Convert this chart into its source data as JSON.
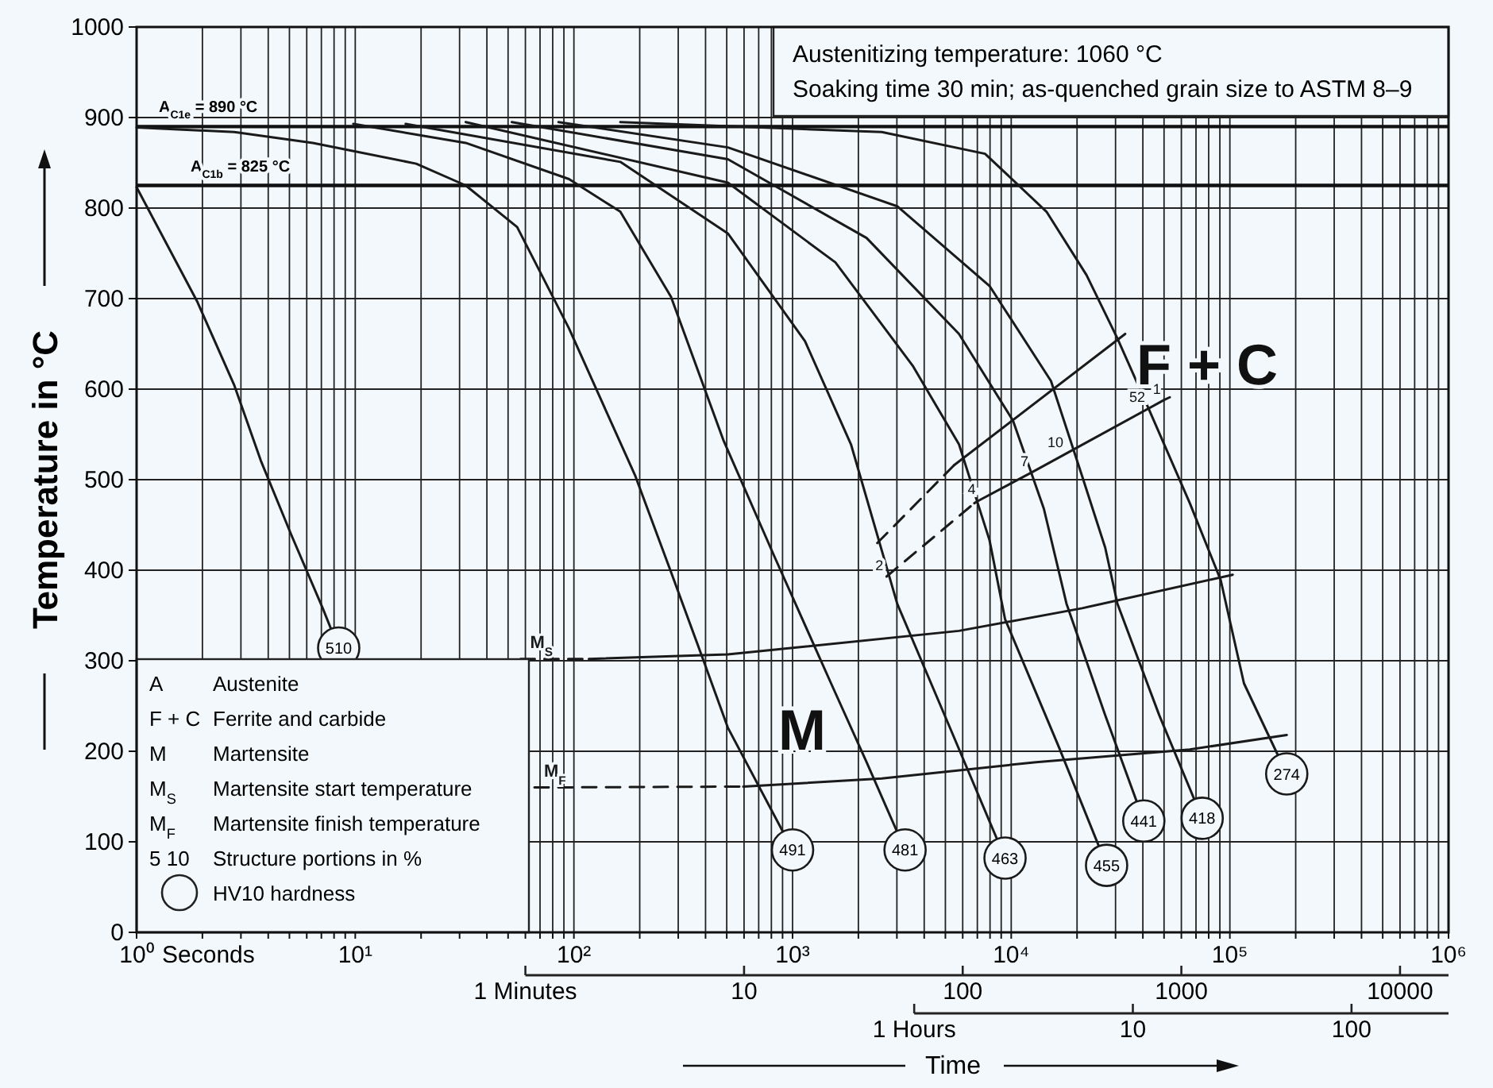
{
  "chart_data": {
    "type": "line",
    "log": "x",
    "grid": true,
    "color": "#1a1a1a",
    "ylabel": "Temperature in °C",
    "xlabel": "Time",
    "xlim": [
      1,
      1000000
    ],
    "ylim": [
      0,
      1000
    ],
    "yticks": [
      0,
      100,
      200,
      300,
      400,
      500,
      600,
      700,
      800,
      900,
      1000
    ],
    "xticks": [
      {
        "value": 1,
        "label": "10⁰"
      },
      {
        "value": 2,
        "label": null
      },
      {
        "value": 3,
        "label": null
      },
      {
        "value": 4,
        "label": null
      },
      {
        "value": 5,
        "label": null
      },
      {
        "value": 6,
        "label": null
      },
      {
        "value": 7,
        "label": null
      },
      {
        "value": 8,
        "label": null
      },
      {
        "value": 9,
        "label": null
      },
      {
        "value": 10,
        "label": "10¹"
      },
      {
        "value": 20,
        "label": null
      },
      {
        "value": 30,
        "label": null
      },
      {
        "value": 40,
        "label": null
      },
      {
        "value": 50,
        "label": null
      },
      {
        "value": 60,
        "label": null
      },
      {
        "value": 70,
        "label": null
      },
      {
        "value": 80,
        "label": null
      },
      {
        "value": 90,
        "label": null
      },
      {
        "value": 100,
        "label": "10²"
      },
      {
        "value": 200,
        "label": null
      },
      {
        "value": 300,
        "label": null
      },
      {
        "value": 400,
        "label": null
      },
      {
        "value": 500,
        "label": null
      },
      {
        "value": 600,
        "label": null
      },
      {
        "value": 700,
        "label": null
      },
      {
        "value": 800,
        "label": null
      },
      {
        "value": 900,
        "label": null
      },
      {
        "value": 1000,
        "label": "10³"
      },
      {
        "value": 2000,
        "label": null
      },
      {
        "value": 3000,
        "label": null
      },
      {
        "value": 4000,
        "label": null
      },
      {
        "value": 5000,
        "label": null
      },
      {
        "value": 6000,
        "label": null
      },
      {
        "value": 7000,
        "label": null
      },
      {
        "value": 8000,
        "label": null
      },
      {
        "value": 9000,
        "label": null
      },
      {
        "value": 10000,
        "label": "10⁴"
      },
      {
        "value": 20000,
        "label": null
      },
      {
        "value": 30000,
        "label": null
      },
      {
        "value": 40000,
        "label": null
      },
      {
        "value": 50000,
        "label": null
      },
      {
        "value": 60000,
        "label": null
      },
      {
        "value": 70000,
        "label": null
      },
      {
        "value": 80000,
        "label": null
      },
      {
        "value": 90000,
        "label": null
      },
      {
        "value": 100000,
        "label": "10⁵"
      },
      {
        "value": 200000,
        "label": null
      },
      {
        "value": 300000,
        "label": null
      },
      {
        "value": 400000,
        "label": null
      },
      {
        "value": 500000,
        "label": null
      },
      {
        "value": 600000,
        "label": null
      },
      {
        "value": 700000,
        "label": null
      },
      {
        "value": 800000,
        "label": null
      },
      {
        "value": 900000,
        "label": null
      },
      {
        "value": 1000000,
        "label": "10⁶"
      }
    ],
    "ref_lines": [
      {
        "axis": "y",
        "value": 890,
        "label": "A$_{C1e}$ = 890 °C"
      },
      {
        "axis": "y",
        "value": 825,
        "label": "A$_{C1b}$ = 825 °C"
      }
    ],
    "series": [
      {
        "x": [
          1,
          1.9,
          2.8,
          3.7,
          5.1,
          7.1,
          8.4
        ],
        "values": [
          823,
          696,
          604,
          521,
          439,
          358,
          314
        ]
      },
      {
        "x": [
          1,
          2.8,
          6.4,
          19,
          32,
          55,
          95,
          191,
          278,
          385,
          506,
          1000
        ],
        "values": [
          889,
          884,
          872,
          849,
          825,
          779,
          667,
          504,
          398,
          305,
          226,
          91
        ]
      },
      {
        "x": [
          9.8,
          32,
          95,
          163,
          278,
          482,
          823,
          1500,
          2180,
          3270
        ],
        "values": [
          893,
          872,
          832,
          796,
          702,
          544,
          416,
          275,
          188,
          91
        ]
      },
      {
        "x": [
          17,
          163,
          506,
          1140,
          1850,
          3010,
          5310,
          9370
        ],
        "values": [
          893,
          851,
          772,
          653,
          539,
          363,
          223,
          82
        ]
      },
      {
        "x": [
          32,
          506,
          1570,
          3540,
          5770,
          7960,
          9370,
          16500,
          27300
        ],
        "values": [
          895,
          828,
          740,
          626,
          539,
          433,
          346,
          205,
          74
        ]
      },
      {
        "x": [
          52,
          506,
          2180,
          5770,
          10200,
          14100,
          17900,
          26900,
          40400
        ],
        "values": [
          895,
          854,
          767,
          661,
          565,
          468,
          363,
          240,
          123
        ]
      },
      {
        "x": [
          85,
          506,
          3010,
          7960,
          15200,
          21100,
          26900,
          30600,
          47500,
          74700
        ],
        "values": [
          895,
          867,
          802,
          714,
          609,
          504,
          425,
          363,
          240,
          126
        ]
      },
      {
        "x": [
          163,
          2560,
          7590,
          14500,
          22100,
          30600,
          42400,
          65600,
          90800,
          116000,
          182000
        ],
        "values": [
          895,
          884,
          860,
          796,
          726,
          656,
          579,
          474,
          389,
          275,
          175
        ]
      },
      {
        "name": "M$_{S}$",
        "x": [
          57,
          117
        ],
        "values": [
          302,
          302
        ],
        "line_style": "dashed"
      },
      {
        "x": [
          117,
          506,
          5770,
          21100,
          103000
        ],
        "values": [
          302,
          307,
          333,
          358,
          395
        ]
      },
      {
        "name": "M$_{F}$",
        "x": [
          66,
          595
        ],
        "values": [
          160,
          161
        ],
        "line_style": "dashed"
      },
      {
        "x": [
          595,
          2560,
          13000,
          65600,
          182000
        ],
        "values": [
          161,
          170,
          188,
          202,
          218
        ]
      },
      {
        "x": [
          2440,
          5480
        ],
        "values": [
          430,
          516
        ],
        "line_style": "dashed"
      },
      {
        "x": [
          5480,
          33200
        ],
        "values": [
          516,
          661
        ]
      },
      {
        "x": [
          2690,
          6780
        ],
        "values": [
          393,
          474
        ],
        "line_style": "dashed"
      },
      {
        "x": [
          6780,
          7110,
          12400,
          17900,
          50000,
          53100
        ],
        "values": [
          474,
          477,
          508,
          529,
          588,
          591
        ]
      }
    ],
    "annotations": [
      "Austenitizing temperature: 1060 °C",
      "Soaking time 30 min; as-quenched grain size to ASTM 8–9",
      "A",
      "Austenite",
      "F + C",
      "Ferrite and carbide",
      "M",
      "Martensite",
      "M$_{S}$",
      "Martensite start temperature",
      "M$_{F}$",
      "Martensite finish temperature",
      "5 10",
      "Structure portions in %",
      "HV10 hardness",
      "M",
      "F + C",
      "Seconds",
      "1 Minutes",
      "10",
      "100",
      "1000",
      "10000",
      "1 Hours",
      "10",
      "100",
      {
        "text": "510",
        "x": 8.4,
        "y": 314
      },
      {
        "text": "491",
        "x": 1000,
        "y": 91
      },
      {
        "text": "481",
        "x": 3270,
        "y": 91
      },
      {
        "text": "463",
        "x": 9370,
        "y": 82
      },
      {
        "text": "455",
        "x": 27300,
        "y": 74
      },
      {
        "text": "441",
        "x": 40400,
        "y": 123
      },
      {
        "text": "418",
        "x": 74700,
        "y": 126
      },
      {
        "text": "274",
        "x": 182000,
        "y": 175
      },
      {
        "text": "2",
        "x": 2690,
        "y": 393
      },
      {
        "text": "4",
        "x": 7110,
        "y": 477
      },
      {
        "text": "7",
        "x": 12400,
        "y": 508
      },
      {
        "text": "10",
        "x": 17900,
        "y": 529
      },
      {
        "text": "52",
        "x": 42400,
        "y": 579
      },
      {
        "text": "1",
        "x": 50000,
        "y": 588
      }
    ]
  }
}
